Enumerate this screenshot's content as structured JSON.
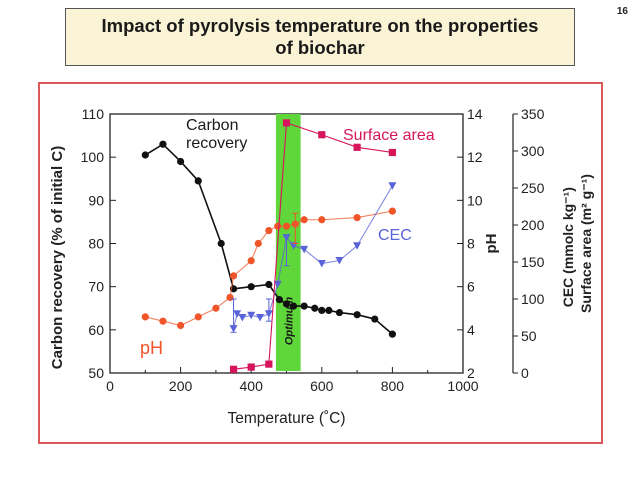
{
  "slide": {
    "number": "16",
    "title": "Impact of pyrolysis temperature on the properties\nof biochar"
  },
  "colors": {
    "carbon": "#111111",
    "ph": "#f0552a",
    "surface": "#d6155c",
    "cec": "#5a63d8",
    "optimum": "#5fd63a",
    "frame": "#d85a5a"
  },
  "chart_data": {
    "type": "line",
    "xlabel": "Temperature (˚C)",
    "x_ticks": [
      "0",
      "200",
      "400",
      "600",
      "800",
      "1000"
    ],
    "xlim": [
      0,
      1000
    ],
    "axes": {
      "carbon": {
        "label": "Carbon recovery (% of initial C)",
        "ylim": [
          50,
          110
        ],
        "ticks": [
          "50",
          "60",
          "70",
          "80",
          "90",
          "100",
          "110"
        ]
      },
      "ph": {
        "label": "pH",
        "ylim": [
          2,
          14
        ],
        "ticks": [
          "2",
          "4",
          "6",
          "8",
          "10",
          "12",
          "14"
        ]
      },
      "cec_sa": {
        "label_cec": "CEC (mmolc kg⁻¹)",
        "label_sa": "Surface area (m² g⁻¹)",
        "ylim": [
          0,
          350
        ],
        "ticks": [
          "0",
          "50",
          "100",
          "150",
          "200",
          "250",
          "300",
          "350"
        ]
      }
    },
    "optimum_band": {
      "label": "Optimum",
      "x_range": [
        470,
        540
      ]
    },
    "series": [
      {
        "name": "Carbon recovery",
        "label": "Carbon\nrecovery",
        "axis": "carbon",
        "marker": "circle",
        "x": [
          100,
          150,
          200,
          250,
          315,
          350,
          400,
          450,
          480,
          500,
          520,
          550,
          580,
          600,
          620,
          650,
          700,
          750,
          800
        ],
        "y": [
          100.5,
          103,
          99,
          94.5,
          80,
          69.5,
          70,
          70.5,
          67,
          66,
          65.5,
          65.5,
          65,
          64.5,
          64.5,
          64,
          63.5,
          62.5,
          59
        ]
      },
      {
        "name": "pH",
        "label": "pH",
        "axis": "ph",
        "marker": "circle",
        "x": [
          100,
          150,
          200,
          250,
          300,
          340,
          350,
          400,
          420,
          450,
          475,
          500,
          525,
          550,
          600,
          700,
          800
        ],
        "y": [
          4.6,
          4.4,
          4.2,
          4.6,
          5.0,
          5.5,
          6.5,
          7.2,
          8.0,
          8.6,
          8.8,
          8.8,
          8.9,
          9.1,
          9.1,
          9.2,
          9.5
        ]
      },
      {
        "name": "CEC",
        "label": "CEC",
        "axis": "cec_sa",
        "marker": "triangle-down",
        "x": [
          350,
          360,
          375,
          400,
          425,
          450,
          475,
          500,
          520,
          550,
          600,
          650,
          700,
          800
        ],
        "y": [
          60,
          80,
          75,
          78,
          75,
          80,
          120,
          183,
          172,
          167,
          148,
          152,
          172,
          253
        ]
      },
      {
        "name": "Surface area",
        "label": "Surface area",
        "axis": "cec_sa",
        "marker": "square",
        "x": [
          350,
          400,
          450,
          500,
          600,
          700,
          800
        ],
        "y": [
          5,
          8,
          12,
          338,
          322,
          305,
          298
        ]
      }
    ],
    "error_bars": [
      {
        "series": "CEC",
        "x": 350,
        "low": 55,
        "high": 100
      },
      {
        "series": "CEC",
        "x": 450,
        "low": 70,
        "high": 100
      },
      {
        "series": "CEC",
        "x": 500,
        "low": 145,
        "high": 185
      },
      {
        "series": "pH",
        "x": 525,
        "low": 8.0,
        "high": 9.4
      }
    ]
  }
}
